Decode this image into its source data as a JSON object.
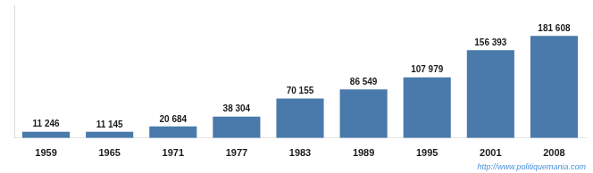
{
  "chart_data": {
    "type": "bar",
    "categories": [
      "1959",
      "1965",
      "1971",
      "1977",
      "1983",
      "1989",
      "1995",
      "2001",
      "2008"
    ],
    "values": [
      11246,
      11145,
      20684,
      38304,
      70155,
      86549,
      107979,
      156393,
      181608
    ],
    "value_labels": [
      "11 246",
      "11 145",
      "20 684",
      "38 304",
      "70 155",
      "86 549",
      "107 979",
      "156 393",
      "181 608"
    ],
    "data_labels": true,
    "color": "#4a7aab",
    "ylim": [
      0,
      236090.4
    ],
    "grid": false,
    "tick_labels": "x",
    "annotations": [
      "http://www.politiquemania.com"
    ]
  }
}
